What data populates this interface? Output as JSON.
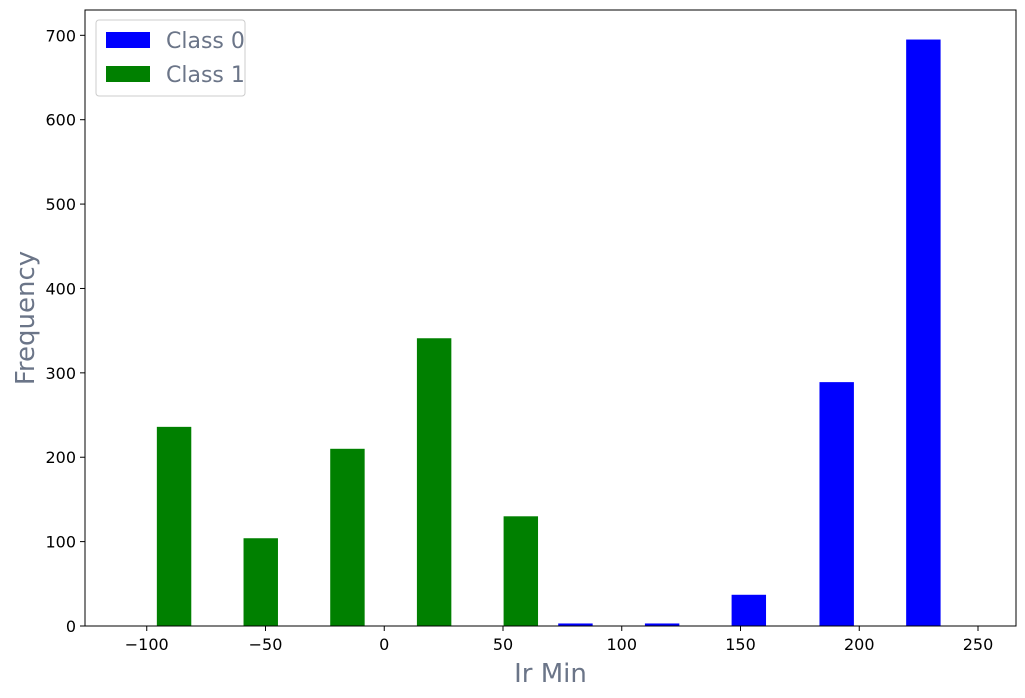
{
  "chart_data": {
    "type": "bar",
    "title": "",
    "xlabel": "Ir Min",
    "ylabel": "Frequency",
    "xlim": [
      -126,
      266
    ],
    "ylim": [
      0,
      730
    ],
    "xticks": [
      -100,
      -50,
      0,
      50,
      100,
      150,
      200,
      250
    ],
    "xtick_labels": [
      "−100",
      "−50",
      "0",
      "50",
      "100",
      "150",
      "200",
      "250"
    ],
    "yticks": [
      0,
      100,
      200,
      300,
      400,
      500,
      600,
      700
    ],
    "ytick_labels": [
      "0",
      "100",
      "200",
      "300",
      "400",
      "500",
      "600",
      "700"
    ],
    "grid": false,
    "legend": {
      "placement": "top-left"
    },
    "bar_width": 14.5,
    "series": [
      {
        "name": "Class 0",
        "color": "#0000ff",
        "x": [
          80.5,
          117,
          153.5,
          190.5,
          227
        ],
        "values": [
          3,
          3,
          37,
          289,
          695
        ]
      },
      {
        "name": "Class 1",
        "color": "#008000",
        "x": [
          -88.5,
          -52,
          -15.5,
          21,
          57.5
        ],
        "values": [
          236,
          104,
          210,
          341,
          130
        ]
      }
    ]
  }
}
